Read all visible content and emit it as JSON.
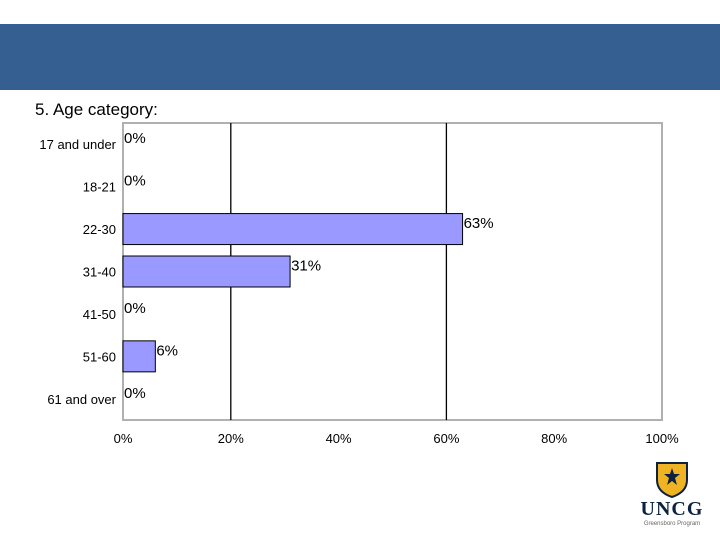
{
  "header": {
    "band_color": "#365f91"
  },
  "chart_data": {
    "type": "bar",
    "orientation": "horizontal",
    "title": "5. Age category:",
    "categories": [
      "17 and under",
      "18-21",
      "22-30",
      "31-40",
      "41-50",
      "51-60",
      "61 and over"
    ],
    "values": [
      0,
      0,
      63,
      31,
      0,
      6,
      0
    ],
    "value_labels": [
      "0%",
      "0%",
      "63%",
      "31%",
      "0%",
      "6%",
      "0%"
    ],
    "xlim": [
      0,
      100
    ],
    "x_ticks": [
      "0%",
      "20%",
      "40%",
      "60%",
      "80%",
      "100%"
    ],
    "xlabel": "",
    "ylabel": "",
    "grid": true,
    "legend": "none",
    "bar_color": "#9999ff"
  },
  "logo": {
    "text": "UNCG",
    "subtitle": "Greensboro Program",
    "color": "#0c2340",
    "accent": "#f0b323"
  }
}
